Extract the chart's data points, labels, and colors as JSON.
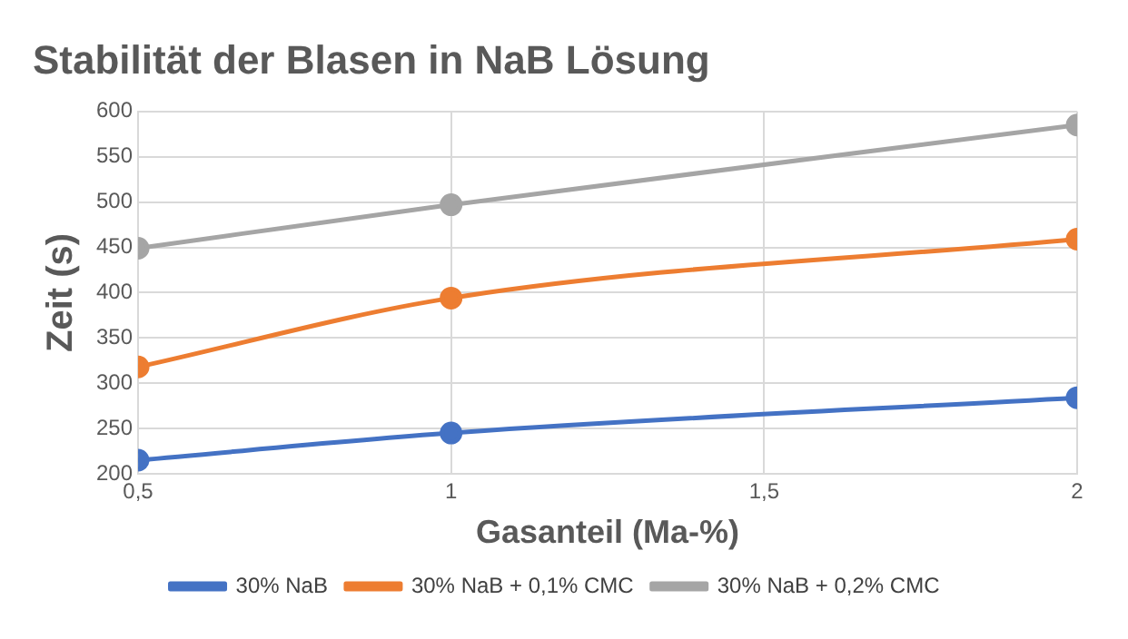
{
  "chart_data": {
    "type": "line",
    "title": "Stabilität der Blasen in NaB Lösung",
    "xlabel": "Gasanteil (Ma-%)",
    "ylabel": "Zeit (s)",
    "x": [
      0.5,
      1,
      2
    ],
    "series": [
      {
        "name": "30% NaB",
        "color": "#4472c4",
        "values": [
          215,
          245,
          284
        ]
      },
      {
        "name": "30% NaB + 0,1% CMC",
        "color": "#ed7d31",
        "values": [
          318,
          394,
          459
        ]
      },
      {
        "name": "30% NaB + 0,2% CMC",
        "color": "#a5a5a5",
        "values": [
          449,
          497,
          585
        ]
      }
    ],
    "xlim": [
      0.5,
      2
    ],
    "xticks": [
      {
        "value": 0.5,
        "label": "0,5"
      },
      1,
      {
        "value": 1.5,
        "label": "1,5"
      },
      2
    ],
    "ylim": [
      200,
      600
    ],
    "yticks": [
      200,
      250,
      300,
      350,
      400,
      450,
      500,
      550,
      600
    ],
    "grid": true,
    "legend": "bottom",
    "marker": "circle",
    "line_style": "solid"
  }
}
